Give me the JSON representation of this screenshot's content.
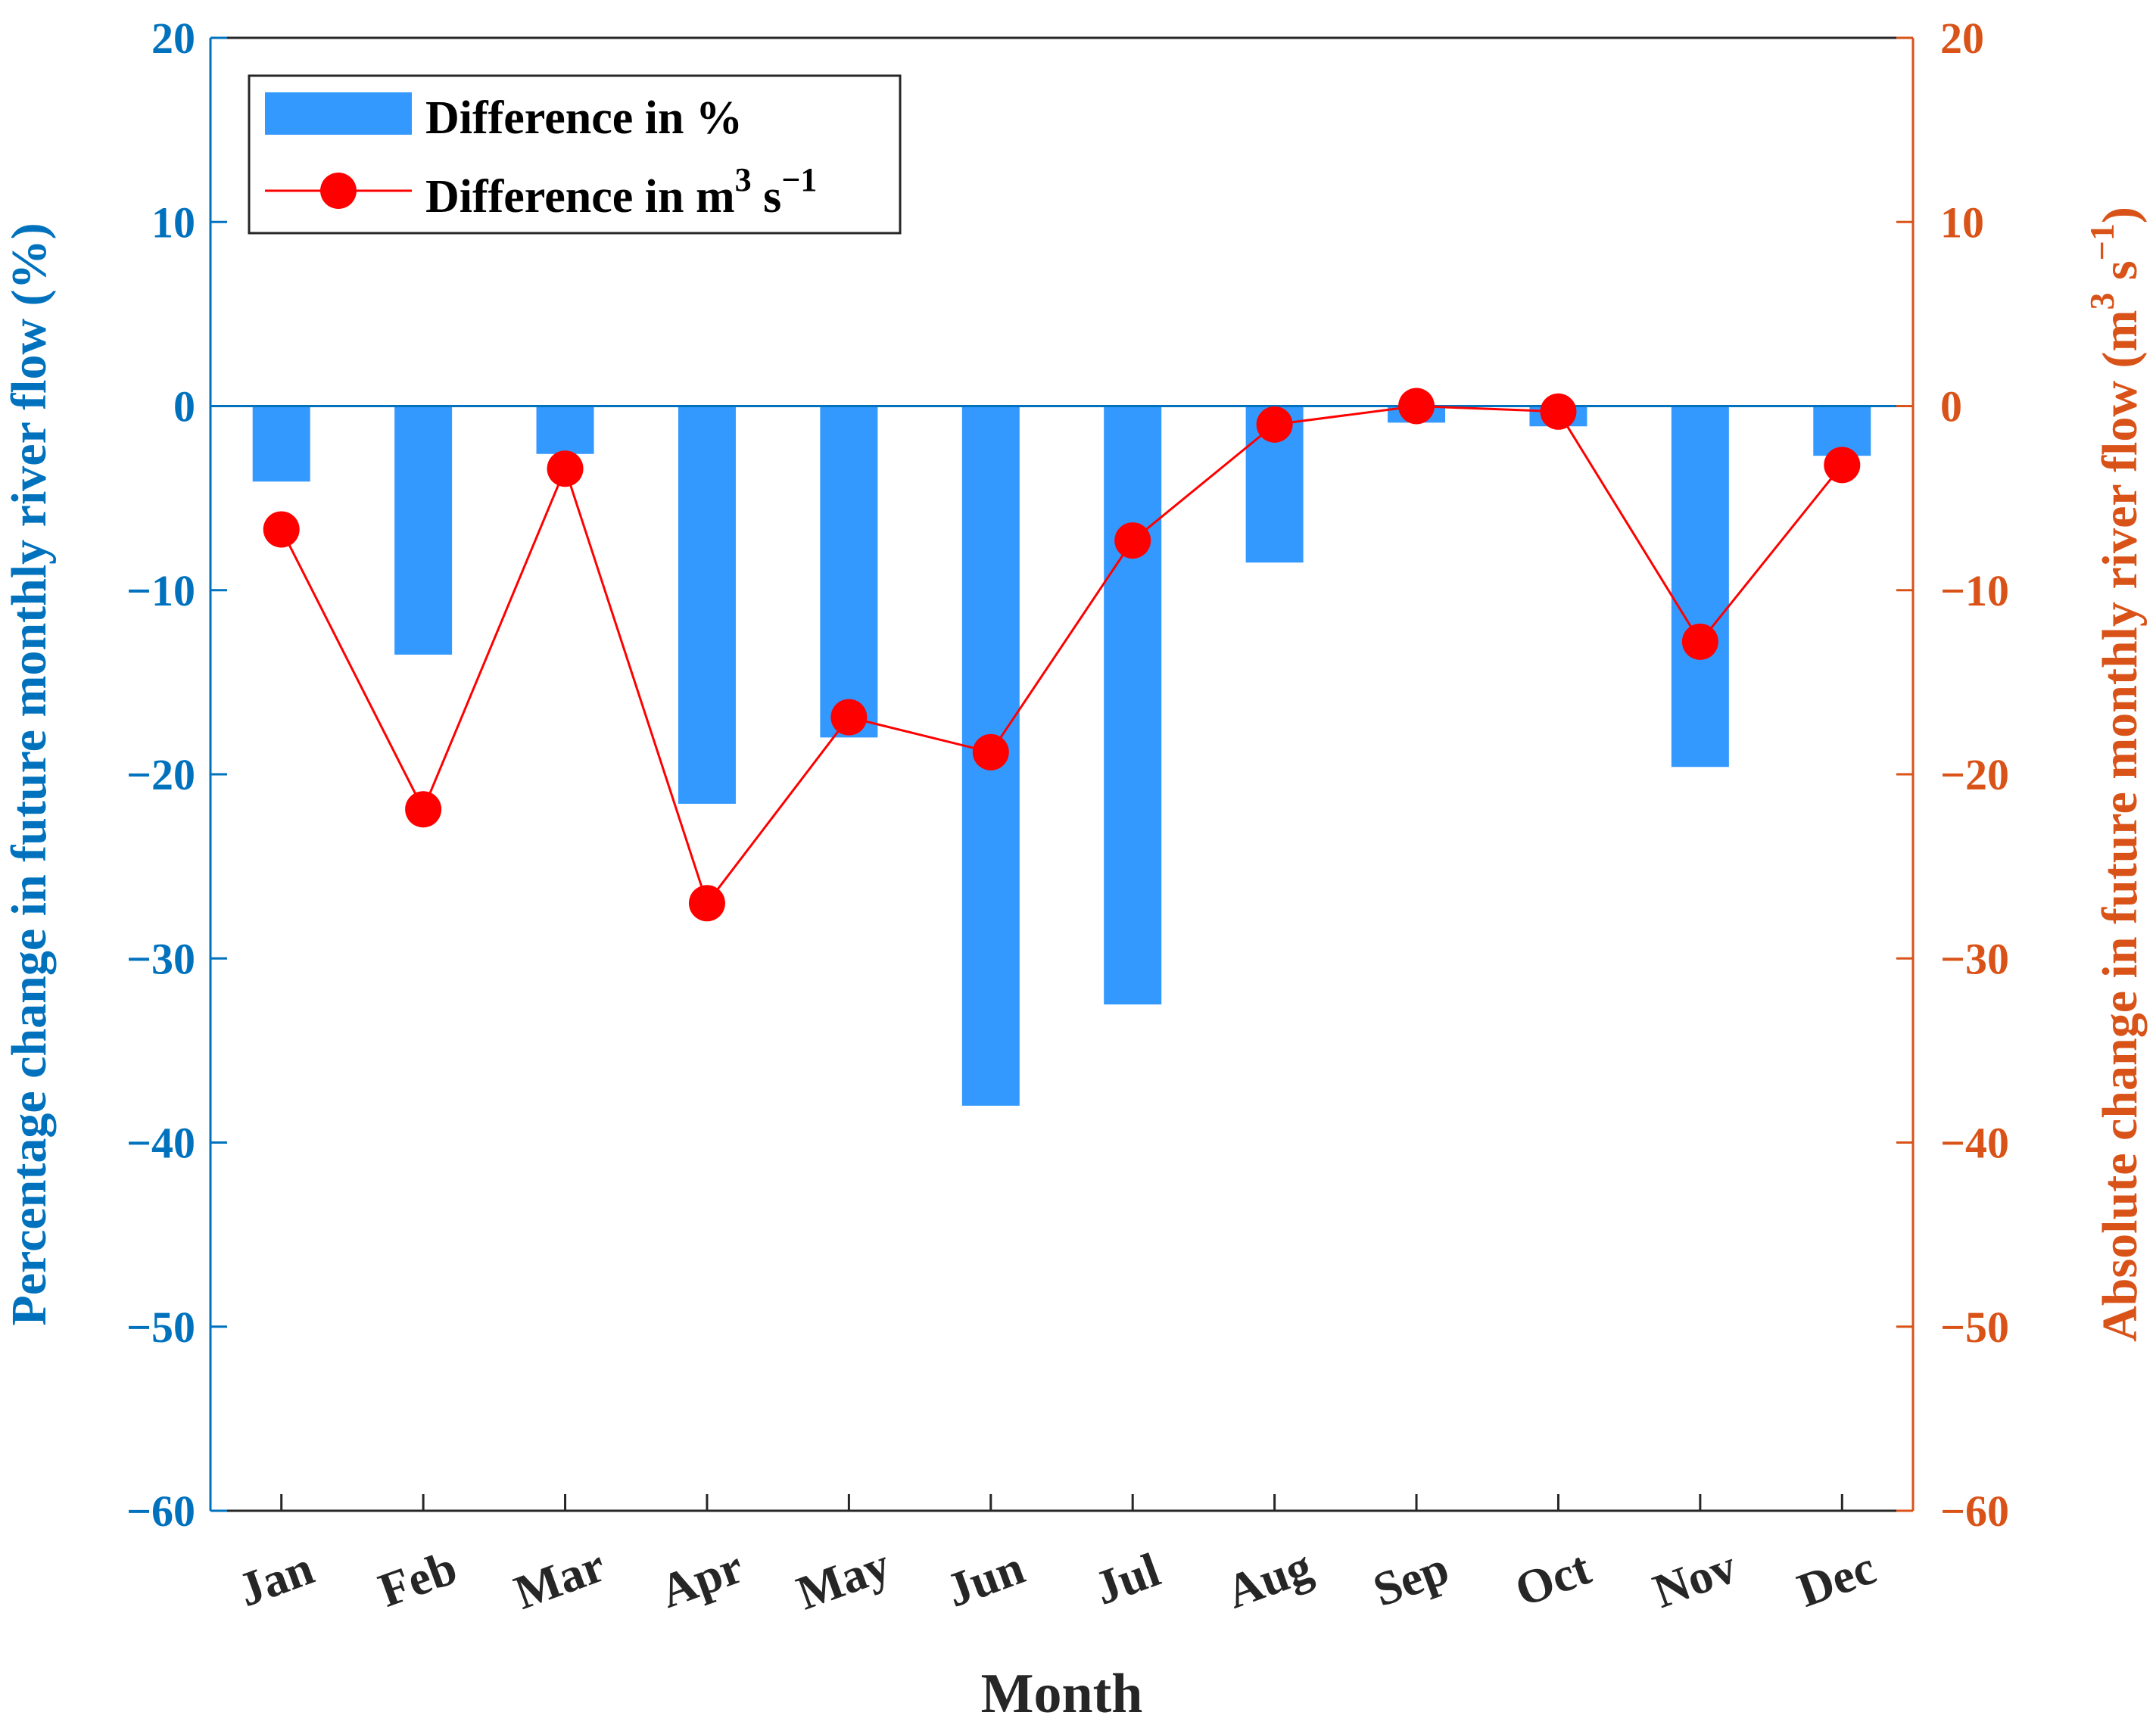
{
  "colors": {
    "bar": "#3399FF",
    "line": "#FF0000",
    "left_axis": "#0072BD",
    "right_axis": "#D95319",
    "bottom_axis": "#262626"
  },
  "chart_data": {
    "type": "bar",
    "title": "",
    "xlabel": "Month",
    "ylabel": "Percentage change in future monthly river flow (%)",
    "ylabel_right": {
      "main": "Absolute change in future monthly river flow (m",
      "sup1": "3",
      "mid": " s",
      "sup2": "−1",
      "end": ")"
    },
    "categories": [
      "Jan",
      "Feb",
      "Mar",
      "Apr",
      "May",
      "Jun",
      "Jul",
      "Aug",
      "Sep",
      "Oct",
      "Nov",
      "Dec"
    ],
    "ylim": [
      -60,
      20
    ],
    "ylim_right": [
      -60,
      20
    ],
    "yticks": [
      20,
      10,
      0,
      -10,
      -20,
      -30,
      -40,
      -50,
      -60
    ],
    "ytick_labels": [
      "20",
      "10",
      "0",
      "−10",
      "−20",
      "−30",
      "−40",
      "−50",
      "−60"
    ],
    "series": [
      {
        "name": "Difference in %",
        "type": "bar",
        "axis": "left",
        "values": [
          -4.1,
          -13.5,
          -2.6,
          -21.6,
          -18.0,
          -38.0,
          -32.5,
          -8.5,
          -0.9,
          -1.1,
          -19.6,
          -2.7
        ]
      },
      {
        "name": "Difference in m³ s⁻¹",
        "type": "line",
        "axis": "right",
        "values": [
          -6.7,
          -21.9,
          -3.4,
          -27.0,
          -16.9,
          -18.8,
          -7.3,
          -1.0,
          0.0,
          -0.3,
          -12.8,
          -3.2
        ]
      }
    ],
    "legend": {
      "position": "top-left",
      "items": [
        {
          "label": "Difference in %"
        },
        {
          "label": "Difference in m",
          "sup1": "3",
          "mid": " s",
          "sup2": "−1"
        }
      ]
    }
  }
}
